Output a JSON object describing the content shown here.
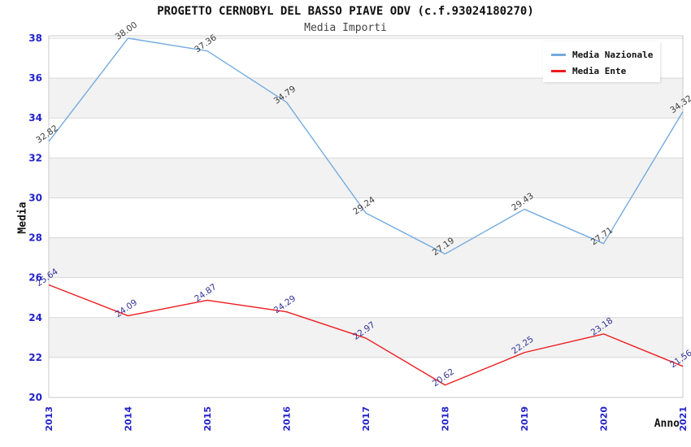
{
  "header": {
    "title": "PROGETTO CERNOBYL DEL BASSO PIAVE ODV (c.f.93024180270)",
    "subtitle": "Media Importi"
  },
  "axes": {
    "ylabel": "Media",
    "xlabel": "Anno"
  },
  "legend": {
    "items": [
      {
        "label": "Media Nazionale",
        "color": "#74abde"
      },
      {
        "label": "Media Ente",
        "color": "#ee1b1e"
      }
    ]
  },
  "chart_data": {
    "type": "line",
    "title": "PROGETTO CERNOBYL DEL BASSO PIAVE ODV (c.f.93024180270)",
    "subtitle": "Media Importi",
    "xlabel": "Anno",
    "ylabel": "Media",
    "x": [
      "2013",
      "2014",
      "2015",
      "2016",
      "2017",
      "2018",
      "2019",
      "2020",
      "2021"
    ],
    "series": [
      {
        "name": "Media Nazionale",
        "color": "#74abde",
        "label_color": "#3d3d3d",
        "values": [
          32.82,
          38.0,
          37.36,
          34.79,
          29.24,
          27.19,
          29.43,
          27.71,
          34.32
        ]
      },
      {
        "name": "Media Ente",
        "color": "#ee1b1e",
        "label_color": "#333399",
        "values": [
          25.64,
          24.09,
          24.87,
          24.29,
          22.97,
          20.62,
          22.25,
          23.18,
          21.56
        ]
      }
    ],
    "ylim": [
      20,
      38
    ],
    "yticks": [
      20,
      22,
      24,
      26,
      28,
      30,
      32,
      34,
      36,
      38
    ],
    "ytick_step": 2,
    "grid": true,
    "band_fill": "#f2f2f2",
    "gridline_color": "#d8d8d8",
    "frame_color": "#c9c9c9",
    "tick_label_color": "#2222cc",
    "legend_position": "top-right"
  }
}
